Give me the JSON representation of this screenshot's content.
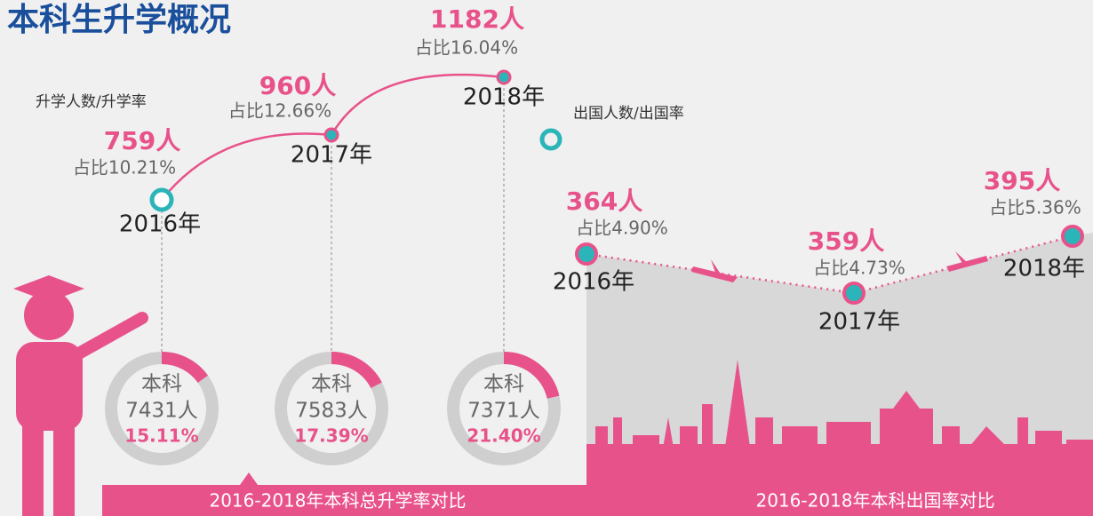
{
  "title": "本科生升学概况",
  "further_study": {
    "legend": "升学人数/升学率",
    "points": [
      {
        "count": "759人",
        "share": "占比10.21%",
        "year": "2016年"
      },
      {
        "count": "960人",
        "share": "占比12.66%",
        "year": "2017年"
      },
      {
        "count": "1182人",
        "share": "占比16.04%",
        "year": "2018年"
      }
    ]
  },
  "abroad": {
    "legend": "出国人数/出国率",
    "points": [
      {
        "count": "364人",
        "share": "占比4.90%",
        "year": "2016年"
      },
      {
        "count": "359人",
        "share": "占比4.73%",
        "year": "2017年"
      },
      {
        "count": "395人",
        "share": "占比5.36%",
        "year": "2018年"
      }
    ]
  },
  "totals": [
    {
      "label": "本科",
      "count": "7431人",
      "rate": 15.11,
      "rate_label": "15.11%"
    },
    {
      "label": "本科",
      "count": "7583人",
      "rate": 17.39,
      "rate_label": "17.39%"
    },
    {
      "label": "本科",
      "count": "7371人",
      "rate": 21.4,
      "rate_label": "21.40%"
    }
  ],
  "footer": {
    "left": "2016-2018年本科总升学率对比",
    "right": "2016-2018年本科出国率对比"
  }
}
